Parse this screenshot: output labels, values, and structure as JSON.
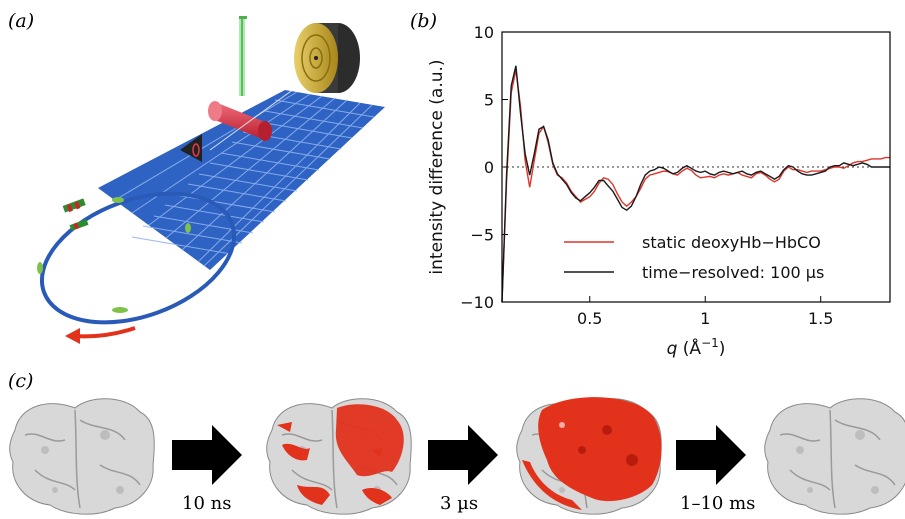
{
  "panels": {
    "a": "(a)",
    "b": "(b)",
    "c": "(c)"
  },
  "colors": {
    "grid_blue": "#2e63c4",
    "ring_blue": "#2a5ab8",
    "cylinder_red": "#e23a4a",
    "detector_gold": "#c9a227",
    "surface_red": "#e2321c",
    "surface_white": "#dcdcdc",
    "arrow_black": "#000000"
  },
  "chart_data": {
    "type": "line",
    "xlabel": "q (Å−1)",
    "xlabel_parts": {
      "q": "q",
      "open": " (Å",
      "exp": "−1",
      "close": ")"
    },
    "ylabel": "intensity difference (a.u.)",
    "xlim": [
      0.12,
      1.8
    ],
    "ylim": [
      -10,
      10
    ],
    "xticks": [
      0.5,
      1,
      1.5
    ],
    "xtick_labels": [
      "0.5",
      "1",
      "1.5"
    ],
    "yticks": [
      10,
      5,
      0,
      -5,
      -10
    ],
    "ytick_labels": [
      "10",
      "5",
      "0",
      "−5",
      "−10"
    ],
    "zero_line": "dotted",
    "legend_position": "bottom-right",
    "series": [
      {
        "name": "static deoxyHb−HbCO",
        "color": "#e0342a",
        "x": [
          0.12,
          0.14,
          0.16,
          0.18,
          0.2,
          0.22,
          0.24,
          0.26,
          0.28,
          0.3,
          0.32,
          0.34,
          0.36,
          0.38,
          0.4,
          0.42,
          0.44,
          0.46,
          0.48,
          0.5,
          0.52,
          0.54,
          0.56,
          0.58,
          0.6,
          0.62,
          0.64,
          0.66,
          0.68,
          0.7,
          0.72,
          0.74,
          0.76,
          0.78,
          0.8,
          0.82,
          0.84,
          0.86,
          0.88,
          0.9,
          0.92,
          0.94,
          0.96,
          0.98,
          1.0,
          1.02,
          1.04,
          1.06,
          1.08,
          1.1,
          1.12,
          1.14,
          1.16,
          1.18,
          1.2,
          1.22,
          1.24,
          1.26,
          1.28,
          1.3,
          1.32,
          1.34,
          1.36,
          1.38,
          1.4,
          1.42,
          1.44,
          1.46,
          1.48,
          1.5,
          1.52,
          1.54,
          1.56,
          1.58,
          1.6,
          1.62,
          1.64,
          1.66,
          1.68,
          1.7,
          1.72,
          1.74,
          1.76,
          1.78,
          1.8
        ],
        "y": [
          -10,
          -1,
          5.5,
          7.2,
          4.5,
          0.5,
          -1.5,
          0.5,
          2.5,
          3.0,
          1.8,
          0.2,
          -0.6,
          -0.8,
          -1.2,
          -1.8,
          -2.2,
          -2.6,
          -2.4,
          -2.2,
          -1.8,
          -1.2,
          -0.8,
          -0.9,
          -1.3,
          -2.0,
          -2.6,
          -2.9,
          -2.6,
          -2.2,
          -1.6,
          -0.9,
          -0.6,
          -0.5,
          -0.4,
          -0.3,
          -0.35,
          -0.5,
          -0.6,
          -0.3,
          -0.1,
          -0.25,
          -0.6,
          -0.8,
          -0.75,
          -0.7,
          -0.8,
          -0.6,
          -0.5,
          -0.6,
          -0.5,
          -0.4,
          -0.6,
          -0.7,
          -0.8,
          -0.5,
          -0.4,
          -0.6,
          -0.9,
          -1.1,
          -0.9,
          -0.3,
          0.0,
          -0.2,
          -0.2,
          -0.3,
          -0.4,
          -0.3,
          -0.3,
          -0.3,
          -0.2,
          -0.1,
          0.0,
          0.0,
          -0.1,
          0.1,
          0.3,
          0.4,
          0.4,
          0.5,
          0.6,
          0.6,
          0.6,
          0.7,
          0.7
        ]
      },
      {
        "name": "time−resolved: 100 µs",
        "color": "#1a1a1a",
        "x": [
          0.12,
          0.14,
          0.16,
          0.18,
          0.2,
          0.22,
          0.24,
          0.26,
          0.28,
          0.3,
          0.32,
          0.34,
          0.36,
          0.38,
          0.4,
          0.42,
          0.44,
          0.46,
          0.48,
          0.5,
          0.52,
          0.54,
          0.56,
          0.58,
          0.6,
          0.62,
          0.64,
          0.66,
          0.68,
          0.7,
          0.72,
          0.74,
          0.76,
          0.78,
          0.8,
          0.82,
          0.84,
          0.86,
          0.88,
          0.9,
          0.92,
          0.94,
          0.96,
          0.98,
          1.0,
          1.02,
          1.04,
          1.06,
          1.08,
          1.1,
          1.12,
          1.14,
          1.16,
          1.18,
          1.2,
          1.22,
          1.24,
          1.26,
          1.28,
          1.3,
          1.32,
          1.34,
          1.36,
          1.38,
          1.4,
          1.42,
          1.44,
          1.46,
          1.48,
          1.5,
          1.52,
          1.54,
          1.56,
          1.58,
          1.6,
          1.62,
          1.64,
          1.66,
          1.68,
          1.7,
          1.72,
          1.74,
          1.76,
          1.78,
          1.8
        ],
        "y": [
          -10,
          -0.5,
          6.0,
          7.5,
          4.0,
          1.0,
          -0.6,
          1.0,
          2.8,
          3.0,
          2.0,
          0.3,
          -0.5,
          -0.9,
          -1.3,
          -1.9,
          -2.3,
          -2.5,
          -2.2,
          -1.9,
          -1.5,
          -1.0,
          -1.0,
          -1.4,
          -1.8,
          -2.4,
          -3.0,
          -3.2,
          -2.9,
          -2.2,
          -1.3,
          -0.6,
          -0.3,
          -0.2,
          0.0,
          -0.1,
          -0.3,
          -0.5,
          -0.4,
          -0.1,
          0.1,
          -0.1,
          -0.3,
          -0.4,
          -0.3,
          -0.5,
          -0.6,
          -0.4,
          -0.3,
          -0.4,
          -0.5,
          -0.4,
          -0.3,
          -0.5,
          -0.6,
          -0.4,
          -0.3,
          -0.5,
          -0.7,
          -0.9,
          -0.7,
          -0.2,
          0.1,
          0.0,
          -0.3,
          -0.5,
          -0.6,
          -0.6,
          -0.5,
          -0.4,
          -0.3,
          0.0,
          0.1,
          0.1,
          0.3,
          0.2,
          0.1,
          0.2,
          0.3,
          0.2,
          0.0,
          0.0,
          0.0,
          0.0,
          0.0
        ]
      }
    ]
  },
  "transitions": [
    {
      "label": "10 ns"
    },
    {
      "label": "3 µs"
    },
    {
      "label": "1–10 ms"
    }
  ]
}
